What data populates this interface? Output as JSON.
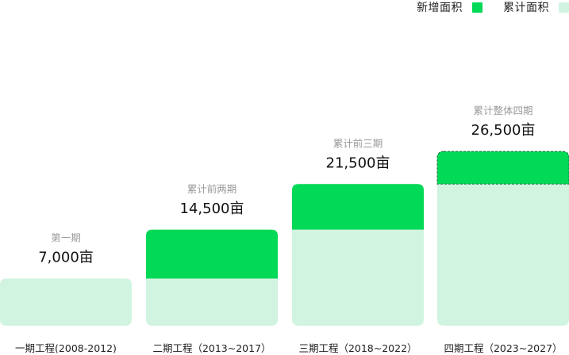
{
  "legend": {
    "items": [
      {
        "label": "新增面积",
        "color": "#02d957"
      },
      {
        "label": "累计面积",
        "color": "#d1f4e0"
      }
    ]
  },
  "chart_data": {
    "type": "bar",
    "stacked": true,
    "unit": "亩",
    "colors": {
      "new": "#02d957",
      "cumulative": "#d1f4e0",
      "text_dark": "#111111",
      "text_muted": "#999999"
    },
    "categories": [
      "一期工程(2008-2012)",
      "二期工程（2013~2017）",
      "三期工程（2018~2022）",
      "四期工程（2023~2027）"
    ],
    "captions": [
      "第一期",
      "累计前两期",
      "累计前三期",
      "累计整体四期"
    ],
    "value_labels": [
      "7,000亩",
      "14,500亩",
      "21,500亩",
      "26,500亩"
    ],
    "totals": [
      7000,
      14500,
      21500,
      26500
    ],
    "series": [
      {
        "name": "累计面积",
        "values": [
          7000,
          7000,
          14500,
          21500
        ]
      },
      {
        "name": "新增面积",
        "values": [
          0,
          7500,
          7000,
          5000
        ]
      }
    ],
    "planned_phase_index": 3
  }
}
